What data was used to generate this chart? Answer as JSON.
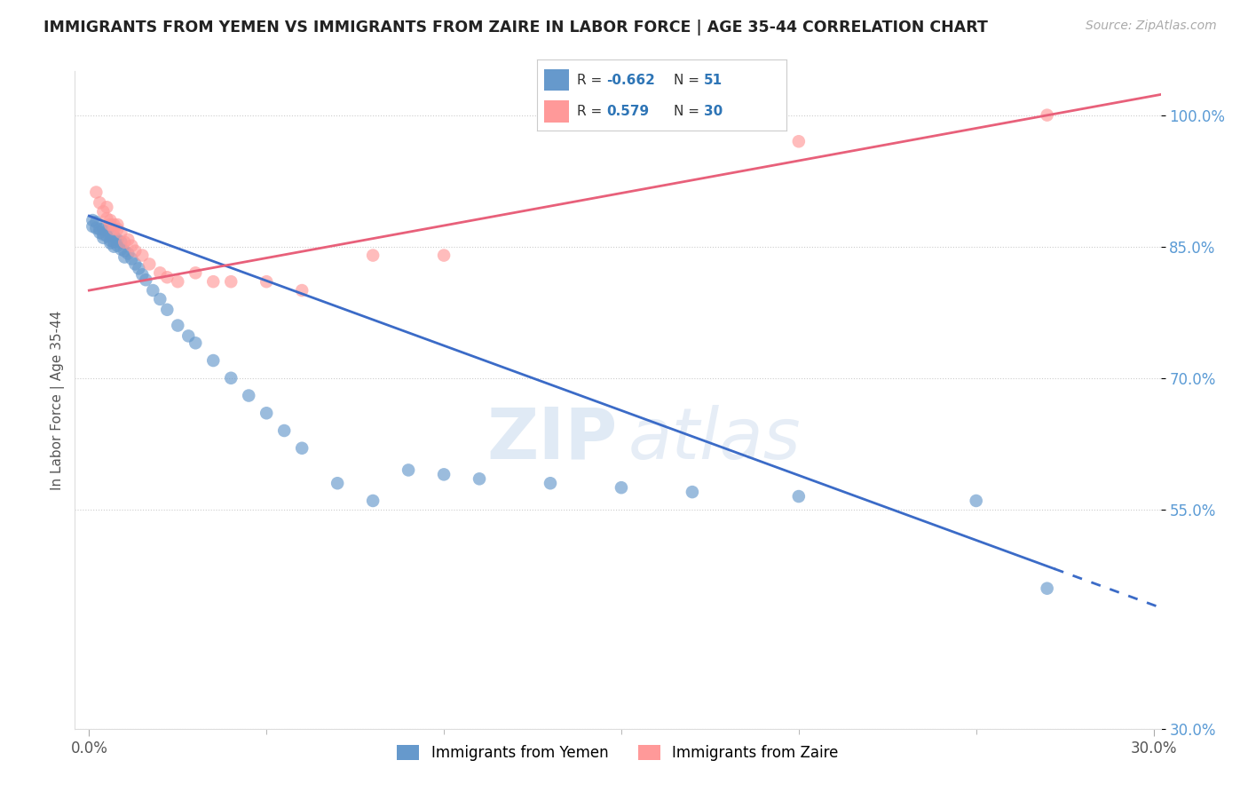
{
  "title": "IMMIGRANTS FROM YEMEN VS IMMIGRANTS FROM ZAIRE IN LABOR FORCE | AGE 35-44 CORRELATION CHART",
  "source": "Source: ZipAtlas.com",
  "ylabel": "In Labor Force | Age 35-44",
  "xlim": [
    -0.004,
    0.302
  ],
  "ylim": [
    0.3,
    1.05
  ],
  "yticks": [
    0.3,
    0.55,
    0.7,
    0.85,
    1.0
  ],
  "ytick_labels": [
    "30.0%",
    "55.0%",
    "70.0%",
    "85.0%",
    "100.0%"
  ],
  "xtick_vals": [
    0.0,
    0.3
  ],
  "xtick_labels": [
    "0.0%",
    "30.0%"
  ],
  "legend_labels": [
    "Immigrants from Yemen",
    "Immigrants from Zaire"
  ],
  "R_yemen": -0.662,
  "N_yemen": 51,
  "R_zaire": 0.579,
  "N_zaire": 30,
  "blue_color": "#6699CC",
  "pink_color": "#FF9999",
  "blue_line_color": "#3B6BC7",
  "pink_line_color": "#E8607A",
  "watermark_zip": "ZIP",
  "watermark_atlas": "atlas",
  "yemen_x": [
    0.001,
    0.001,
    0.002,
    0.002,
    0.003,
    0.003,
    0.004,
    0.004,
    0.004,
    0.005,
    0.005,
    0.006,
    0.006,
    0.007,
    0.007,
    0.007,
    0.008,
    0.008,
    0.009,
    0.009,
    0.01,
    0.01,
    0.011,
    0.012,
    0.013,
    0.014,
    0.015,
    0.016,
    0.018,
    0.02,
    0.022,
    0.025,
    0.028,
    0.03,
    0.035,
    0.04,
    0.045,
    0.05,
    0.055,
    0.06,
    0.07,
    0.08,
    0.09,
    0.1,
    0.11,
    0.13,
    0.15,
    0.17,
    0.2,
    0.25,
    0.27
  ],
  "yemen_y": [
    0.88,
    0.873,
    0.878,
    0.871,
    0.87,
    0.866,
    0.87,
    0.864,
    0.86,
    0.868,
    0.862,
    0.857,
    0.854,
    0.862,
    0.855,
    0.85,
    0.858,
    0.851,
    0.855,
    0.847,
    0.845,
    0.838,
    0.842,
    0.836,
    0.83,
    0.825,
    0.818,
    0.812,
    0.8,
    0.79,
    0.778,
    0.76,
    0.748,
    0.74,
    0.72,
    0.7,
    0.68,
    0.66,
    0.64,
    0.62,
    0.58,
    0.56,
    0.595,
    0.59,
    0.585,
    0.58,
    0.575,
    0.57,
    0.565,
    0.56,
    0.46
  ],
  "zaire_x": [
    0.002,
    0.003,
    0.004,
    0.005,
    0.005,
    0.006,
    0.006,
    0.007,
    0.007,
    0.008,
    0.008,
    0.009,
    0.01,
    0.011,
    0.012,
    0.013,
    0.015,
    0.017,
    0.02,
    0.022,
    0.025,
    0.03,
    0.035,
    0.04,
    0.05,
    0.06,
    0.08,
    0.1,
    0.2,
    0.27
  ],
  "zaire_y": [
    0.912,
    0.9,
    0.89,
    0.882,
    0.895,
    0.875,
    0.88,
    0.87,
    0.875,
    0.87,
    0.875,
    0.866,
    0.855,
    0.858,
    0.851,
    0.845,
    0.84,
    0.83,
    0.82,
    0.815,
    0.81,
    0.82,
    0.81,
    0.81,
    0.81,
    0.8,
    0.84,
    0.84,
    0.97,
    1.0
  ]
}
